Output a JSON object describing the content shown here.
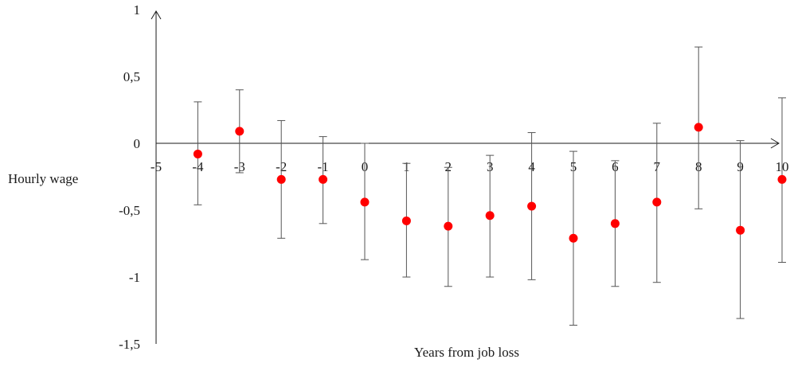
{
  "chart_data": {
    "type": "scatter",
    "title": "",
    "xlabel": "Years from job loss",
    "ylabel": "Hourly wage",
    "xlim": [
      -5,
      10
    ],
    "ylim": [
      -1.5,
      1
    ],
    "x_ticks": [
      -5,
      -4,
      -3,
      -2,
      -1,
      0,
      1,
      2,
      3,
      4,
      5,
      6,
      7,
      8,
      9,
      10
    ],
    "x_tick_labels": [
      "-5",
      "-4",
      "-3",
      "-2",
      "-1",
      "0",
      "1",
      "2",
      "3",
      "4",
      "5",
      "6",
      "7",
      "8",
      "9",
      "10"
    ],
    "y_ticks": [
      1,
      0.5,
      0,
      -0.5,
      -1,
      -1.5
    ],
    "y_tick_labels": [
      "1",
      "0,5",
      "0",
      "-0,5",
      "-1",
      "-1,5"
    ],
    "grid": false,
    "marker_color": "#ff0000",
    "error_bar_color": "#555555",
    "points": [
      {
        "x": -4,
        "y": -0.08,
        "lo": -0.46,
        "hi": 0.31
      },
      {
        "x": -3,
        "y": 0.09,
        "lo": -0.22,
        "hi": 0.4
      },
      {
        "x": -2,
        "y": -0.27,
        "lo": -0.71,
        "hi": 0.17
      },
      {
        "x": -1,
        "y": -0.27,
        "lo": -0.6,
        "hi": 0.05
      },
      {
        "x": 0,
        "y": -0.44,
        "lo": -0.87,
        "hi": 0.0
      },
      {
        "x": 1,
        "y": -0.58,
        "lo": -1.0,
        "hi": -0.15
      },
      {
        "x": 2,
        "y": -0.62,
        "lo": -1.07,
        "hi": -0.18
      },
      {
        "x": 3,
        "y": -0.54,
        "lo": -1.0,
        "hi": -0.09
      },
      {
        "x": 4,
        "y": -0.47,
        "lo": -1.02,
        "hi": 0.08
      },
      {
        "x": 5,
        "y": -0.71,
        "lo": -1.36,
        "hi": -0.06
      },
      {
        "x": 6,
        "y": -0.6,
        "lo": -1.07,
        "hi": -0.13
      },
      {
        "x": 7,
        "y": -0.44,
        "lo": -1.04,
        "hi": 0.15
      },
      {
        "x": 8,
        "y": 0.12,
        "lo": -0.49,
        "hi": 0.72
      },
      {
        "x": 9,
        "y": -0.65,
        "lo": -1.31,
        "hi": 0.02
      },
      {
        "x": 10,
        "y": -0.27,
        "lo": -0.89,
        "hi": 0.34
      }
    ]
  }
}
